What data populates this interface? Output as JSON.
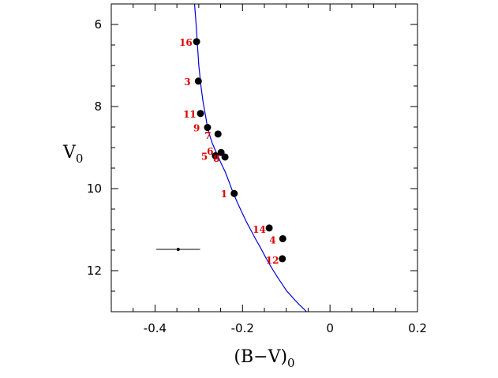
{
  "chart_data": {
    "type": "scatter",
    "title": "",
    "xlabel": "(B−V)",
    "xlabel_sub": "0",
    "ylabel": "V",
    "ylabel_sub": "0",
    "xlim": [
      -0.5,
      0.2
    ],
    "ylim": [
      13.0,
      5.5
    ],
    "y_inverted": true,
    "grid": false,
    "xticks": [
      -0.4,
      -0.2,
      0,
      0.2
    ],
    "xtick_labels": [
      "-0.4",
      "-0.2",
      "0",
      "0.2"
    ],
    "xminor_step": 0.05,
    "yticks": [
      6,
      8,
      10,
      12
    ],
    "ytick_labels": [
      "6",
      "8",
      "10",
      "12"
    ],
    "yminor_step": 0.5,
    "colors": {
      "points": "#000000",
      "labels": "#e00000",
      "isochrone": "#0000dd",
      "axes": "#000000"
    },
    "points": [
      {
        "label": "16",
        "x": -0.305,
        "y": 6.42
      },
      {
        "label": "3",
        "x": -0.301,
        "y": 7.38
      },
      {
        "label": "11",
        "x": -0.296,
        "y": 8.17
      },
      {
        "label": "9",
        "x": -0.28,
        "y": 8.51
      },
      {
        "label": "7",
        "x": -0.256,
        "y": 8.67
      },
      {
        "label": "6",
        "x": -0.249,
        "y": 9.12
      },
      {
        "label": "5",
        "x": -0.262,
        "y": 9.2
      },
      {
        "label": "8",
        "x": -0.24,
        "y": 9.23
      },
      {
        "label": "1",
        "x": -0.219,
        "y": 10.12
      },
      {
        "label": "14",
        "x": -0.139,
        "y": 10.96
      },
      {
        "label": "4",
        "x": -0.108,
        "y": 11.22
      },
      {
        "label": "12",
        "x": -0.109,
        "y": 11.71
      }
    ],
    "error_bar": {
      "x": -0.347,
      "y": 11.48,
      "xerr": 0.05
    },
    "isochrone": {
      "x": [
        -0.31,
        -0.306,
        -0.303,
        -0.3,
        -0.295,
        -0.29,
        -0.285,
        -0.28,
        -0.275,
        -0.27,
        -0.265,
        -0.26,
        -0.255,
        -0.25,
        -0.245,
        -0.24,
        -0.235,
        -0.23,
        -0.225,
        -0.22,
        -0.215,
        -0.21,
        -0.2,
        -0.19,
        -0.18,
        -0.17,
        -0.16,
        -0.15,
        -0.14,
        -0.13,
        -0.12,
        -0.11,
        -0.1,
        -0.09,
        -0.08,
        -0.07,
        -0.06,
        -0.054
      ],
      "y": [
        5.45,
        6.0,
        6.5,
        7.0,
        7.5,
        7.9,
        8.2,
        8.5,
        8.7,
        8.87,
        9.0,
        9.12,
        9.24,
        9.36,
        9.47,
        9.58,
        9.72,
        9.86,
        10.0,
        10.14,
        10.26,
        10.38,
        10.61,
        10.83,
        11.03,
        11.23,
        11.42,
        11.62,
        11.81,
        11.99,
        12.16,
        12.32,
        12.48,
        12.6,
        12.72,
        12.83,
        12.93,
        13.0
      ]
    }
  }
}
